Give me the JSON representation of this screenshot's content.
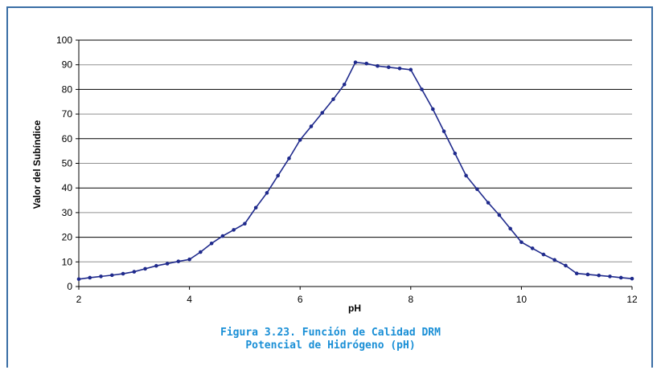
{
  "chart_data": {
    "type": "line",
    "xlabel": "pH",
    "ylabel": "Valor del Subíndice",
    "xlim": [
      2,
      12
    ],
    "ylim": [
      0,
      100
    ],
    "xticks": [
      2,
      4,
      6,
      8,
      10,
      12
    ],
    "yticks": [
      0,
      10,
      20,
      30,
      40,
      50,
      60,
      70,
      80,
      90,
      100
    ],
    "grid": "horizontal",
    "legend": "none",
    "line_color": "#1f2a8c",
    "series": [
      {
        "x": [
          2.0,
          2.2,
          2.4,
          2.6,
          2.8,
          3.0,
          3.2,
          3.4,
          3.6,
          3.8,
          4.0,
          4.2,
          4.4,
          4.6,
          4.8,
          5.0,
          5.2,
          5.4,
          5.6,
          5.8,
          6.0,
          6.2,
          6.4,
          6.6,
          6.8,
          7.0,
          7.2,
          7.4,
          7.6,
          7.8,
          8.0,
          8.2,
          8.4,
          8.6,
          8.8,
          9.0,
          9.2,
          9.4,
          9.6,
          9.8,
          10.0,
          10.2,
          10.4,
          10.6,
          10.8,
          11.0,
          11.2,
          11.4,
          11.6,
          11.8,
          12.0
        ],
        "values": [
          3,
          3.6,
          4.1,
          4.6,
          5.2,
          6,
          7.2,
          8.4,
          9.3,
          10.2,
          11,
          14,
          17.5,
          20.5,
          23,
          25.5,
          32,
          38,
          45,
          52,
          59.5,
          65,
          70.5,
          76,
          82,
          91,
          90.5,
          89.5,
          89,
          88.5,
          88,
          80,
          72,
          63,
          54,
          45,
          39.5,
          34,
          29,
          23.5,
          18,
          15.5,
          13,
          10.8,
          8.5,
          5.3,
          4.9,
          4.5,
          4.1,
          3.6,
          3.2
        ]
      }
    ]
  },
  "caption": {
    "line1": "Figura 3.23. Función de Calidad DRM",
    "line2": "Potencial de Hidrógeno (pH)"
  }
}
